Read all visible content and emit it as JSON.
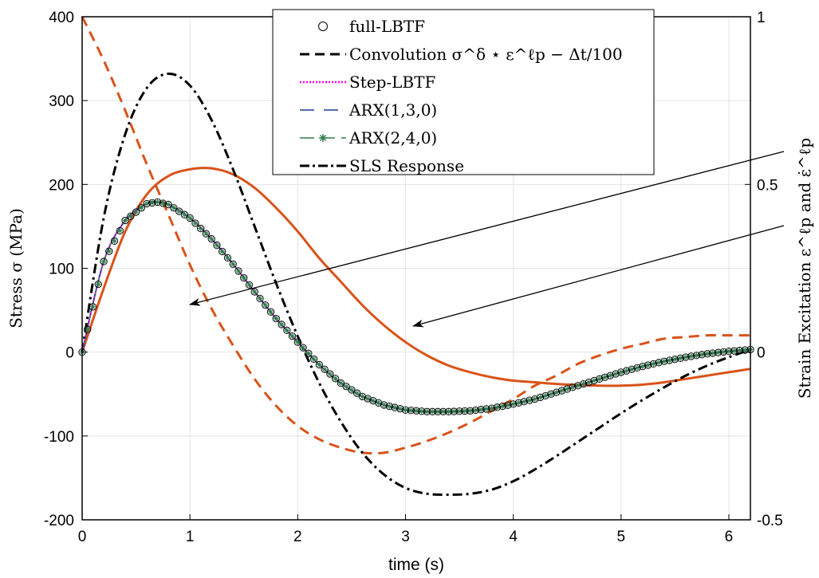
{
  "chart_data": {
    "type": "line",
    "xlabel": "time (s)",
    "ylabel_left": "Stress σ (MPa)",
    "ylabel_right": "Strain Excitation ε^ℓp and ε̇^ℓp",
    "xlim": [
      0,
      6.2
    ],
    "ylim_left": [
      -200,
      400
    ],
    "ylim_right": [
      -0.5,
      1
    ],
    "xticks": [
      "0",
      "1",
      "2",
      "3",
      "4",
      "5",
      "6"
    ],
    "yticks_left": [
      "-200",
      "-100",
      "0",
      "100",
      "200",
      "300",
      "400"
    ],
    "yticks_right": [
      "-0.5",
      "0",
      "0.5",
      "1"
    ],
    "grid": true,
    "legend_position": "top-center",
    "legend": [
      {
        "label": "full-LBTF",
        "style": "circle-markers",
        "color": "#000000"
      },
      {
        "label": "Convolution σ^δ ⋆ ε^ℓp − Δt/100",
        "style": "dashed",
        "color": "#000000"
      },
      {
        "label": "Step-LBTF",
        "style": "dotted",
        "color": "#ff00ff"
      },
      {
        "label": "ARX(1,3,0)",
        "style": "long-dash",
        "color": "#1f3c8f"
      },
      {
        "label": "ARX(2,4,0)",
        "style": "solid-asterisk",
        "color": "#2e7d4a"
      },
      {
        "label": "SLS Response",
        "style": "dash-dot",
        "color": "#000000"
      }
    ],
    "series": [
      {
        "name": "full-LBTF",
        "axis": "left",
        "x": [
          0,
          0.2,
          0.4,
          0.6,
          0.7,
          0.8,
          1.0,
          1.2,
          1.4,
          1.6,
          1.8,
          2.0,
          2.2,
          2.4,
          2.6,
          2.8,
          3.0,
          3.2,
          3.4,
          3.6,
          3.8,
          4.0,
          4.2,
          4.4,
          4.6,
          4.8,
          5.0,
          5.2,
          5.4,
          5.6,
          5.8,
          6.0,
          6.2
        ],
        "y": [
          0,
          108,
          157,
          177,
          179,
          176,
          160,
          135,
          105,
          72,
          40,
          12,
          -15,
          -37,
          -53,
          -63,
          -69,
          -71,
          -71,
          -70,
          -67,
          -62,
          -56,
          -48,
          -40,
          -32,
          -24,
          -17,
          -11,
          -6,
          -2,
          1,
          3
        ]
      },
      {
        "name": "SLS Response",
        "axis": "left",
        "x": [
          0,
          0.2,
          0.4,
          0.6,
          0.8,
          1.0,
          1.2,
          1.4,
          1.6,
          1.8,
          2.0,
          2.2,
          2.4,
          2.6,
          2.8,
          3.0,
          3.2,
          3.4,
          3.6,
          3.8,
          4.0,
          4.2,
          4.4,
          4.6,
          4.8,
          5.0,
          5.2,
          5.4,
          5.6,
          5.8,
          6.0,
          6.2
        ],
        "y": [
          0,
          160,
          260,
          315,
          332,
          318,
          277,
          218,
          150,
          82,
          19,
          -37,
          -83,
          -120,
          -146,
          -162,
          -169,
          -170,
          -169,
          -164,
          -154,
          -140,
          -124,
          -107,
          -90,
          -73,
          -57,
          -42,
          -28,
          -16,
          -6,
          3
        ]
      },
      {
        "name": "Strain Excitation ε^ℓp",
        "axis": "right",
        "x": [
          0,
          0.2,
          0.4,
          0.6,
          0.8,
          1.0,
          1.2,
          1.4,
          1.6,
          1.8,
          2.0,
          2.2,
          2.4,
          2.6,
          2.8,
          3.0,
          3.2,
          3.4,
          3.6,
          3.8,
          4.0,
          4.2,
          4.4,
          4.6,
          4.8,
          5.0,
          5.2,
          5.4,
          5.6,
          5.8,
          6.0,
          6.2
        ],
        "y": [
          0,
          0.19,
          0.36,
          0.47,
          0.525,
          0.545,
          0.548,
          0.53,
          0.49,
          0.43,
          0.36,
          0.28,
          0.21,
          0.14,
          0.08,
          0.03,
          -0.01,
          -0.04,
          -0.06,
          -0.075,
          -0.085,
          -0.09,
          -0.095,
          -0.098,
          -0.1,
          -0.1,
          -0.097,
          -0.09,
          -0.08,
          -0.07,
          -0.06,
          -0.05
        ]
      },
      {
        "name": "Strain Excitation ε̇^ℓp",
        "axis": "right",
        "x": [
          0,
          0.2,
          0.4,
          0.6,
          0.8,
          1.0,
          1.2,
          1.4,
          1.6,
          1.8,
          2.0,
          2.2,
          2.4,
          2.6,
          2.8,
          3.0,
          3.2,
          3.4,
          3.6,
          3.8,
          4.0,
          4.2,
          4.4,
          4.6,
          4.8,
          5.0,
          5.2,
          5.4,
          5.6,
          5.8,
          6.0,
          6.2
        ],
        "y": [
          1.0,
          0.87,
          0.72,
          0.56,
          0.41,
          0.26,
          0.13,
          0.02,
          -0.08,
          -0.16,
          -0.22,
          -0.26,
          -0.285,
          -0.3,
          -0.3,
          -0.285,
          -0.265,
          -0.24,
          -0.21,
          -0.175,
          -0.14,
          -0.1,
          -0.07,
          -0.035,
          -0.01,
          0.01,
          0.025,
          0.04,
          0.045,
          0.05,
          0.05,
          0.05
        ]
      }
    ]
  }
}
